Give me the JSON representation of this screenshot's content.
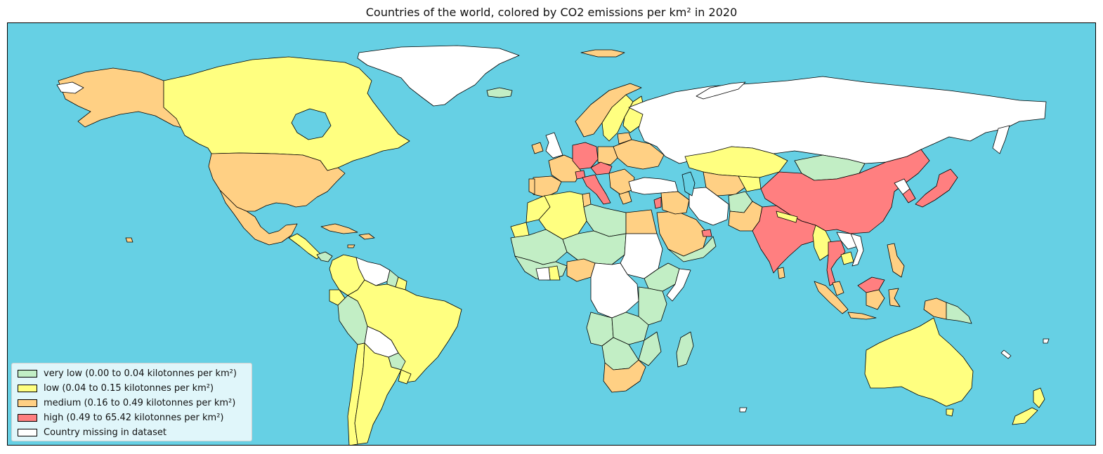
{
  "title": "Countries of the world, colored by CO2 emissions per km² in 2020",
  "colors": {
    "ocean": "#66d0e4",
    "very_low": "#c2eec5",
    "low": "#ffff80",
    "medium": "#ffd084",
    "high": "#ff7f80",
    "missing": "#ffffff",
    "border": "#000000"
  },
  "legend": {
    "items": [
      {
        "label": "very low (0.00 to 0.04 kilotonnes per km²)",
        "color": "#c2eec5"
      },
      {
        "label": "low (0.04 to 0.15 kilotonnes per km²)",
        "color": "#ffff80"
      },
      {
        "label": "medium (0.16 to 0.49 kilotonnes per km²)",
        "color": "#ffd084"
      },
      {
        "label": "high (0.49 to 65.42 kilotonnes per km²)",
        "color": "#ff7f80"
      },
      {
        "label": "Country missing in dataset",
        "color": "#ffffff"
      }
    ]
  }
}
